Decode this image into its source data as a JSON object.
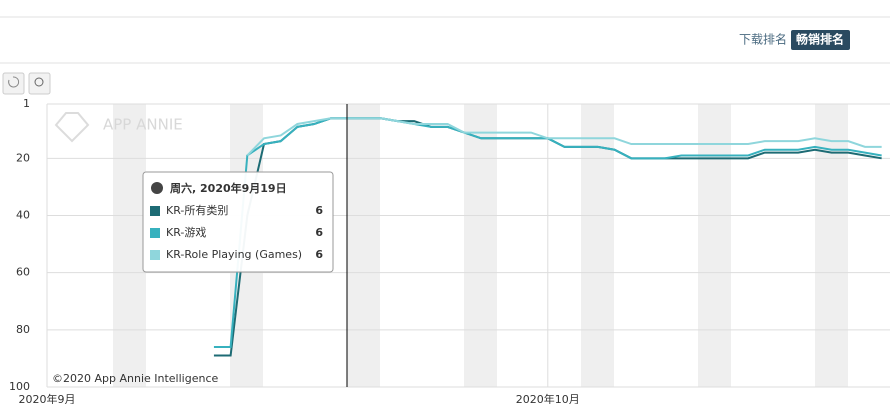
{
  "chart_data": {
    "type": "line",
    "x": [
      11,
      12,
      13,
      14,
      15,
      16,
      17,
      18,
      19,
      20,
      21,
      22,
      23,
      24,
      25,
      26,
      27,
      28,
      29,
      30,
      31,
      32,
      33,
      34,
      35,
      36,
      37,
      38,
      39,
      40,
      41,
      42,
      43,
      44,
      45,
      46,
      47,
      48,
      49,
      50,
      51
    ],
    "xlim": [
      1,
      51.5
    ],
    "xticks": [
      {
        "value": 1,
        "label": "2020年9月"
      },
      {
        "value": 31,
        "label": "2020年10月"
      }
    ],
    "ylim": [
      1,
      100
    ],
    "y_inverted": true,
    "yticks": [
      1,
      20,
      40,
      60,
      80,
      100
    ],
    "grid": true,
    "series": [
      {
        "name": "KR-所有类别",
        "color": "#1d6b74",
        "values": [
          89,
          89,
          40,
          15,
          14,
          9,
          8,
          6,
          6,
          6,
          6,
          7,
          7,
          9,
          9,
          11,
          13,
          13,
          13,
          13,
          13,
          16,
          16,
          16,
          17,
          20,
          20,
          20,
          20,
          20,
          20,
          20,
          20,
          18,
          18,
          18,
          17,
          18,
          18,
          19,
          20
        ]
      },
      {
        "name": "KR-游戏",
        "color": "#37b1be",
        "values": [
          86,
          86,
          19,
          15,
          14,
          9,
          8,
          6,
          6,
          6,
          6,
          7,
          8,
          9,
          9,
          11,
          13,
          13,
          13,
          13,
          13,
          16,
          16,
          16,
          17,
          20,
          20,
          20,
          19,
          19,
          19,
          19,
          19,
          17,
          17,
          17,
          16,
          17,
          17,
          18,
          19
        ]
      },
      {
        "name": "KR-Role Playing (Games)",
        "color": "#8fd6dc",
        "values": [
          null,
          null,
          19,
          13,
          12,
          8,
          7,
          6,
          6,
          6,
          6,
          7,
          8,
          8,
          8,
          11,
          11,
          11,
          11,
          11,
          13,
          13,
          13,
          13,
          13,
          15,
          15,
          15,
          15,
          15,
          15,
          15,
          15,
          14,
          14,
          14,
          13,
          14,
          14,
          16,
          16
        ]
      }
    ],
    "tooltip_title": "周六, 2020年9月19日",
    "tooltip_index": 8
  },
  "ui": {
    "tab_download": "下载排名",
    "tab_revenue": "畅销排名",
    "watermark": "APP ANNIE",
    "credit": "©2020 App Annie Intelligence"
  }
}
